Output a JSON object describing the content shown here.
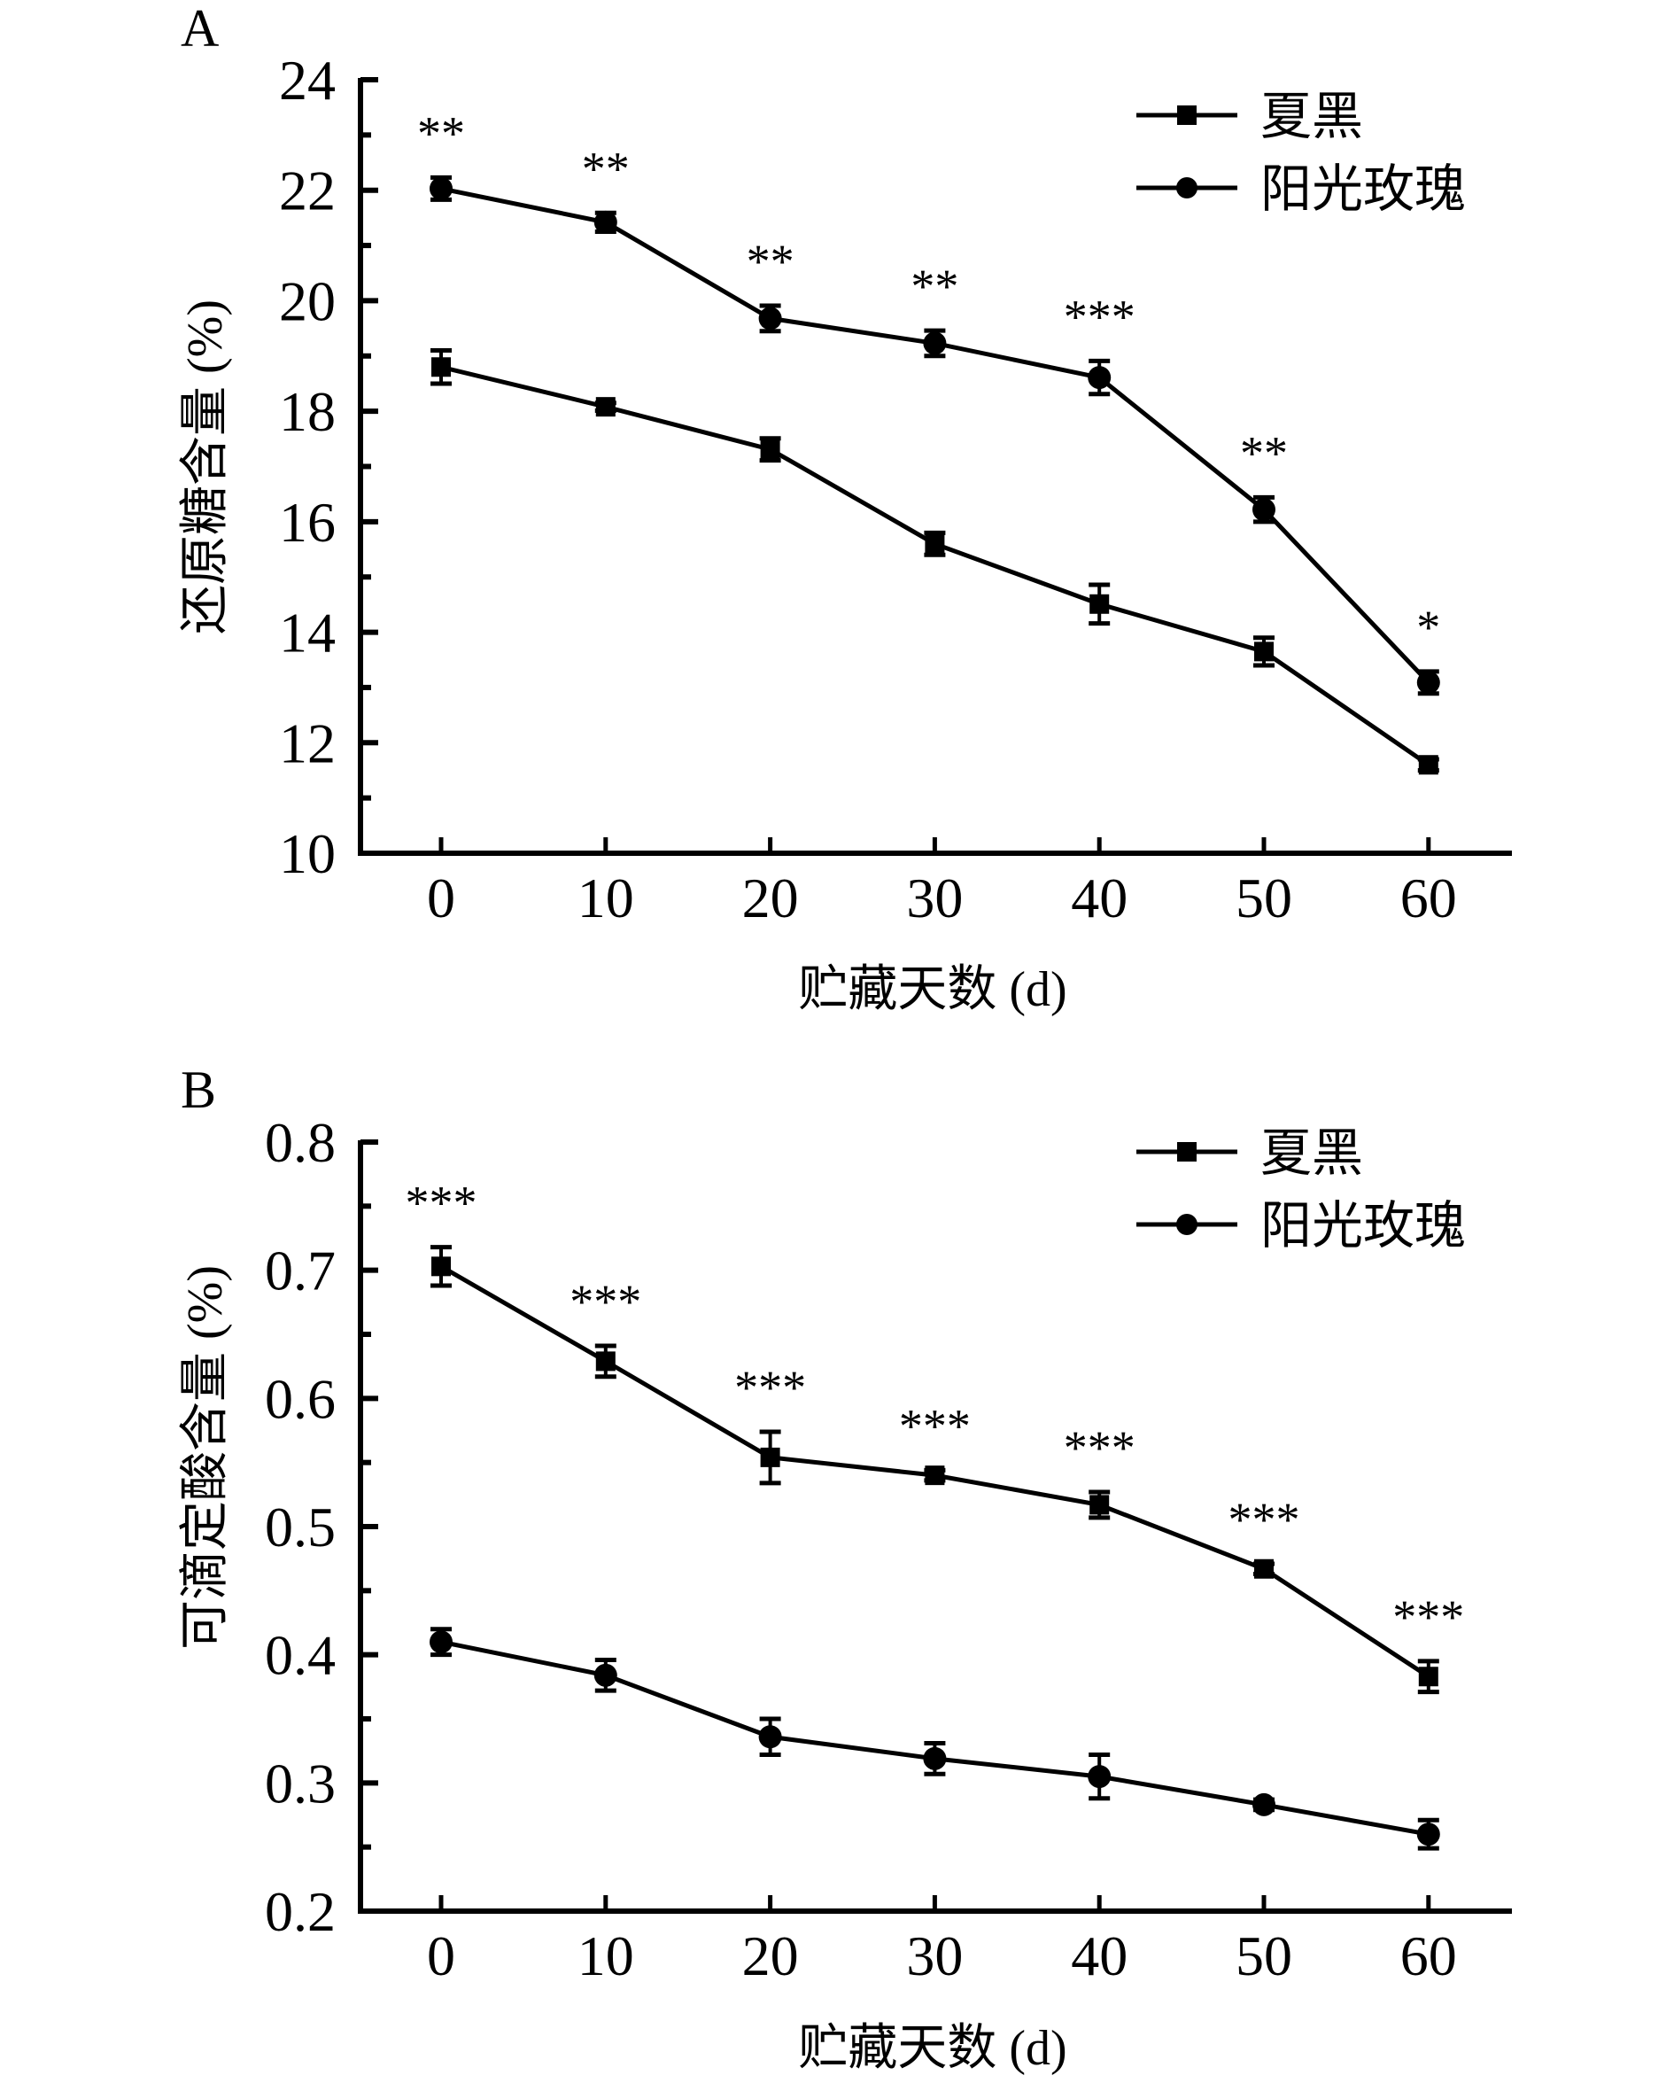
{
  "colors": {
    "ink": "#000000",
    "background": "#ffffff"
  },
  "chart_data": [
    {
      "panel": "A",
      "type": "line",
      "title": "",
      "xlabel": "贮藏天数 (d)",
      "ylabel": "还原糖含量 (%)",
      "x": [
        0,
        10,
        20,
        30,
        40,
        50,
        60
      ],
      "x_ticks": [
        "0",
        "10",
        "20",
        "30",
        "40",
        "50",
        "60"
      ],
      "xlim": [
        -5,
        65
      ],
      "ylim": [
        10,
        24
      ],
      "y_ticks": [
        "10",
        "12",
        "14",
        "16",
        "18",
        "20",
        "22",
        "24"
      ],
      "y_tick_values": [
        10,
        12,
        14,
        16,
        18,
        20,
        22,
        24
      ],
      "y_minor_step": 1,
      "grid": false,
      "legend_position": "top-right",
      "series": [
        {
          "name": "夏黑",
          "marker": "square",
          "values": [
            18.8,
            18.08,
            17.31,
            15.6,
            14.51,
            13.65,
            11.6
          ],
          "errors": [
            0.3,
            0.07,
            0.2,
            0.2,
            0.35,
            0.25,
            0.1
          ]
        },
        {
          "name": "阳光玫瑰",
          "marker": "circle",
          "values": [
            22.03,
            21.42,
            19.68,
            19.23,
            18.61,
            16.22,
            13.09
          ],
          "errors": [
            0.2,
            0.17,
            0.23,
            0.23,
            0.3,
            0.22,
            0.2
          ]
        }
      ],
      "significance": {
        "above_series": "阳光玫瑰",
        "labels": [
          "**",
          "**",
          "**",
          "**",
          "***",
          "**",
          "*"
        ]
      }
    },
    {
      "panel": "B",
      "type": "line",
      "title": "",
      "xlabel": "贮藏天数 (d)",
      "ylabel": "可滴定酸含量 (%)",
      "x": [
        0,
        10,
        20,
        30,
        40,
        50,
        60
      ],
      "x_ticks": [
        "0",
        "10",
        "20",
        "30",
        "40",
        "50",
        "60"
      ],
      "xlim": [
        -5,
        65
      ],
      "ylim": [
        0.2,
        0.8
      ],
      "y_ticks": [
        "0.2",
        "0.3",
        "0.4",
        "0.5",
        "0.6",
        "0.7",
        "0.8"
      ],
      "y_tick_values": [
        0.2,
        0.3,
        0.4,
        0.5,
        0.6,
        0.7,
        0.8
      ],
      "y_minor_step": 0.05,
      "grid": false,
      "legend_position": "top-right",
      "series": [
        {
          "name": "夏黑",
          "marker": "square",
          "values": [
            0.703,
            0.629,
            0.554,
            0.54,
            0.517,
            0.467,
            0.383
          ],
          "errors": [
            0.015,
            0.012,
            0.02,
            0.004,
            0.01,
            0.004,
            0.012
          ]
        },
        {
          "name": "阳光玫瑰",
          "marker": "circle",
          "values": [
            0.41,
            0.384,
            0.336,
            0.319,
            0.305,
            0.283,
            0.26
          ],
          "errors": [
            0.01,
            0.012,
            0.014,
            0.012,
            0.017,
            0.004,
            0.011
          ]
        }
      ],
      "significance": {
        "above_series": "夏黑",
        "labels": [
          "***",
          "***",
          "***",
          "***",
          "***",
          "***",
          "***"
        ]
      }
    }
  ]
}
